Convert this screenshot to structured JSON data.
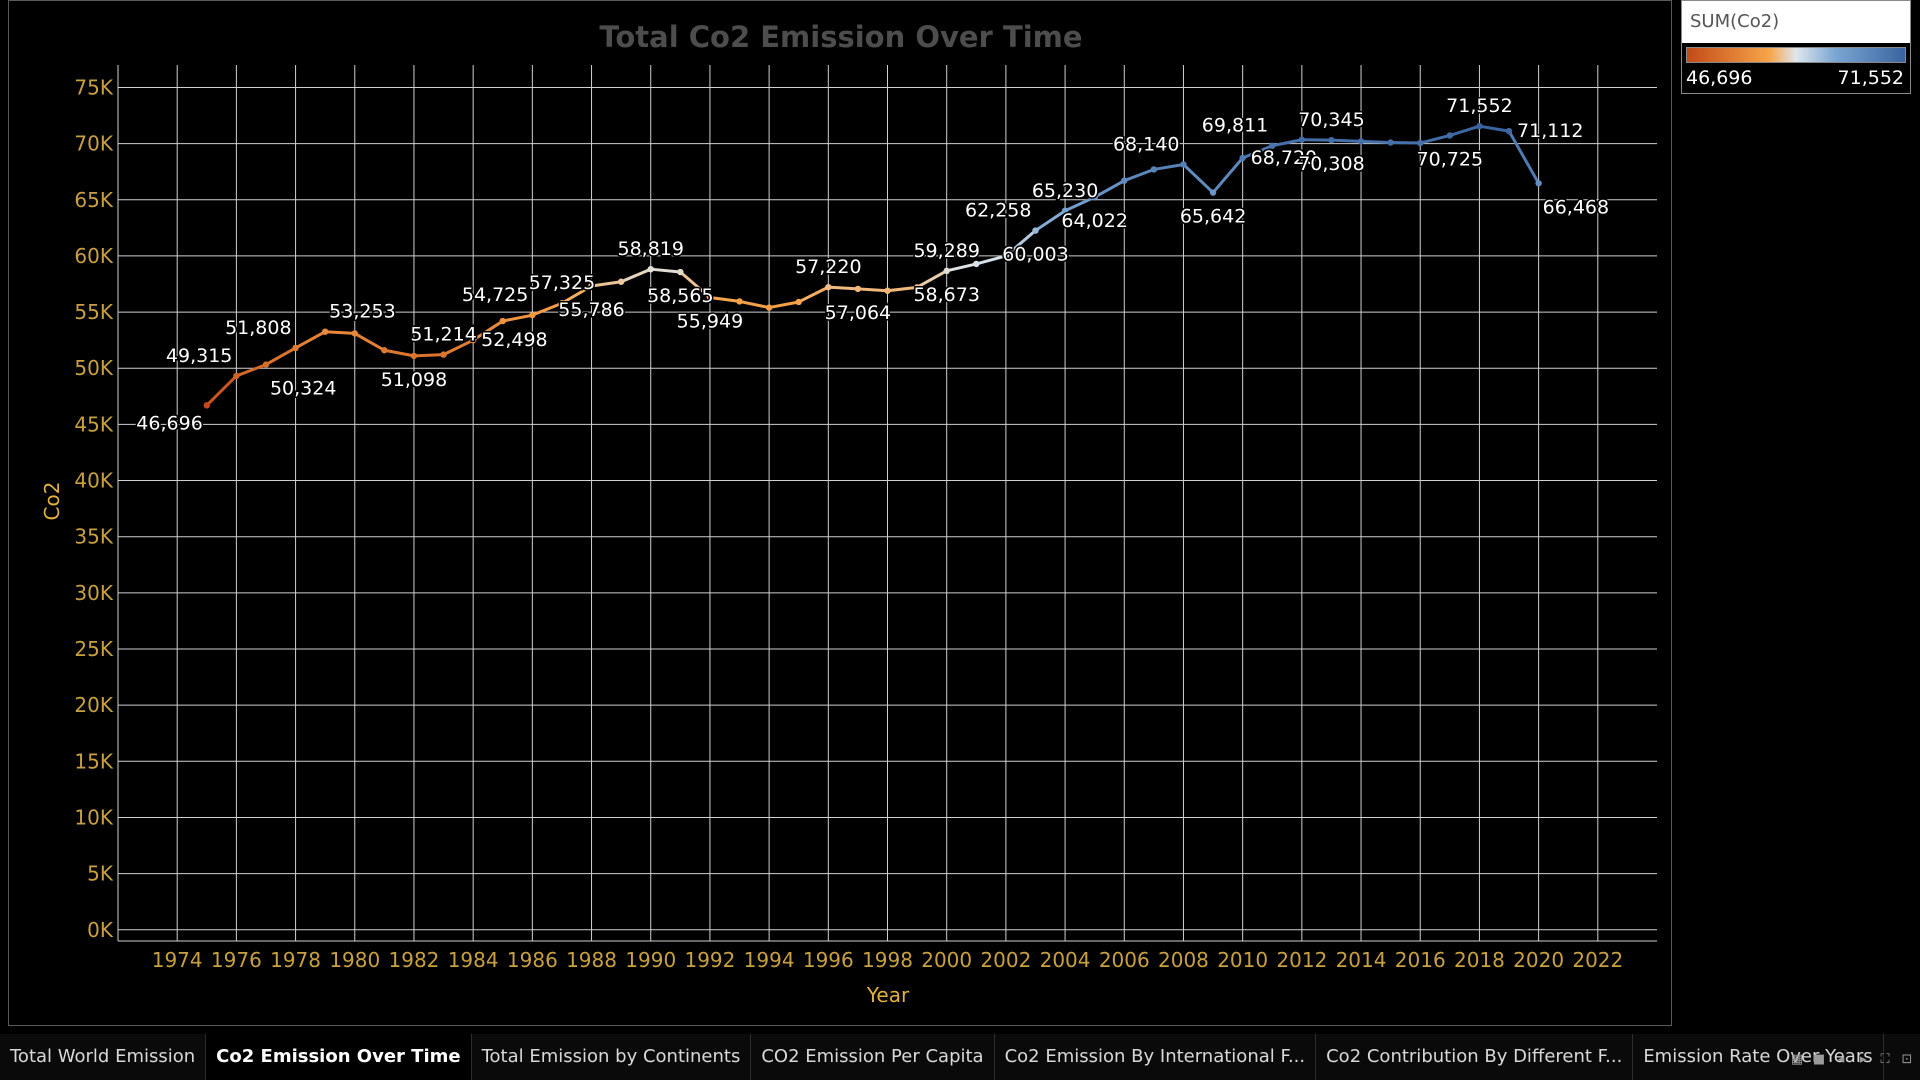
{
  "colors": {
    "background": "#000000",
    "ramp_start": "#c24a18",
    "ramp_mid_orange": "#f7a54a",
    "ramp_mid_light": "#dfe6ec",
    "ramp_mid_blue": "#7aa6d2",
    "ramp_end": "#3a64a0"
  },
  "legend": {
    "title": "SUM(Co2)",
    "min_label": "46,696",
    "max_label": "71,552"
  },
  "tabs": [
    {
      "label": "Total World Emission",
      "active": false
    },
    {
      "label": "Co2 Emission Over Time",
      "active": true
    },
    {
      "label": "Total Emission by Continents",
      "active": false
    },
    {
      "label": "CO2 Emission Per Capita",
      "active": false
    },
    {
      "label": "Co2 Emission By International  F...",
      "active": false
    },
    {
      "label": "Co2 Contribution By Different F...",
      "active": false
    },
    {
      "label": "Emission Rate Over Years",
      "active": false
    }
  ],
  "nav_icons": [
    "grid-view-icon",
    "square-view-icon",
    "prev-icon",
    "next-icon",
    "fullscreen-icon",
    "presentation-icon"
  ],
  "chart_data": {
    "type": "line",
    "title": "Total Co2 Emission Over Time",
    "xlabel": "Year",
    "ylabel": "Co2",
    "xlim": [
      1972,
      2024
    ],
    "ylim": [
      -1000,
      77000
    ],
    "x_ticks": [
      1974,
      1976,
      1978,
      1980,
      1982,
      1984,
      1986,
      1988,
      1990,
      1992,
      1994,
      1996,
      1998,
      2000,
      2002,
      2004,
      2006,
      2008,
      2010,
      2012,
      2014,
      2016,
      2018,
      2020,
      2022
    ],
    "y_ticks": [
      0,
      5000,
      10000,
      15000,
      20000,
      25000,
      30000,
      35000,
      40000,
      45000,
      50000,
      55000,
      60000,
      65000,
      70000,
      75000
    ],
    "y_tick_labels": [
      "0K",
      "5K",
      "10K",
      "15K",
      "20K",
      "25K",
      "30K",
      "35K",
      "40K",
      "45K",
      "50K",
      "55K",
      "60K",
      "65K",
      "70K",
      "75K"
    ],
    "grid": true,
    "x": [
      1975,
      1976,
      1977,
      1978,
      1979,
      1980,
      1981,
      1982,
      1983,
      1984,
      1985,
      1986,
      1987,
      1988,
      1989,
      1990,
      1991,
      1992,
      1993,
      1994,
      1995,
      1996,
      1997,
      1998,
      1999,
      2000,
      2001,
      2002,
      2003,
      2004,
      2005,
      2006,
      2007,
      2008,
      2009,
      2010,
      2011,
      2012,
      2013,
      2014,
      2015,
      2016,
      2017,
      2018,
      2019,
      2020
    ],
    "values": [
      46696,
      49315,
      50324,
      51808,
      53253,
      53100,
      51600,
      51098,
      51214,
      52498,
      54200,
      54725,
      55786,
      57325,
      57700,
      58819,
      58565,
      56300,
      55949,
      55400,
      55900,
      57220,
      57064,
      56900,
      57200,
      58673,
      59289,
      60003,
      62258,
      64022,
      65230,
      66700,
      67700,
      68140,
      65642,
      68720,
      69811,
      70345,
      70308,
      70200,
      70100,
      70050,
      70725,
      71552,
      71112,
      66468
    ],
    "data_labels": [
      {
        "year": 1975,
        "text": "46,696",
        "pos": "left-below"
      },
      {
        "year": 1976,
        "text": "49,315",
        "pos": "above-left"
      },
      {
        "year": 1977,
        "text": "50,324",
        "pos": "below-right"
      },
      {
        "year": 1978,
        "text": "51,808",
        "pos": "above-left"
      },
      {
        "year": 1979,
        "text": "53,253",
        "pos": "above-right"
      },
      {
        "year": 1982,
        "text": "51,098",
        "pos": "below"
      },
      {
        "year": 1983,
        "text": "51,214",
        "pos": "above"
      },
      {
        "year": 1984,
        "text": "52,498",
        "pos": "right"
      },
      {
        "year": 1986,
        "text": "54,725",
        "pos": "above-left"
      },
      {
        "year": 1987,
        "text": "57,325",
        "pos": "above"
      },
      {
        "year": 1988,
        "text": "55,786",
        "pos": "below"
      },
      {
        "year": 1990,
        "text": "58,819",
        "pos": "above"
      },
      {
        "year": 1991,
        "text": "58,565",
        "pos": "below"
      },
      {
        "year": 1992,
        "text": "55,949",
        "pos": "below"
      },
      {
        "year": 1996,
        "text": "57,220",
        "pos": "above"
      },
      {
        "year": 1997,
        "text": "57,064",
        "pos": "below"
      },
      {
        "year": 2000,
        "text": "59,289",
        "pos": "above"
      },
      {
        "year": 2000,
        "text": "58,673",
        "pos": "below"
      },
      {
        "year": 2003,
        "text": "60,003",
        "pos": "below"
      },
      {
        "year": 2003,
        "text": "62,258",
        "pos": "above-left"
      },
      {
        "year": 2004,
        "text": "65,230",
        "pos": "above"
      },
      {
        "year": 2005,
        "text": "64,022",
        "pos": "below"
      },
      {
        "year": 2008,
        "text": "68,140",
        "pos": "above-left"
      },
      {
        "year": 2009,
        "text": "65,642",
        "pos": "below"
      },
      {
        "year": 2010,
        "text": "68,720",
        "pos": "right"
      },
      {
        "year": 2011,
        "text": "69,811",
        "pos": "above-left"
      },
      {
        "year": 2013,
        "text": "70,345",
        "pos": "above"
      },
      {
        "year": 2013,
        "text": "70,308",
        "pos": "below"
      },
      {
        "year": 2017,
        "text": "70,725",
        "pos": "below"
      },
      {
        "year": 2018,
        "text": "71,552",
        "pos": "above"
      },
      {
        "year": 2019,
        "text": "71,112",
        "pos": "right"
      },
      {
        "year": 2020,
        "text": "66,468",
        "pos": "below-right"
      }
    ]
  }
}
